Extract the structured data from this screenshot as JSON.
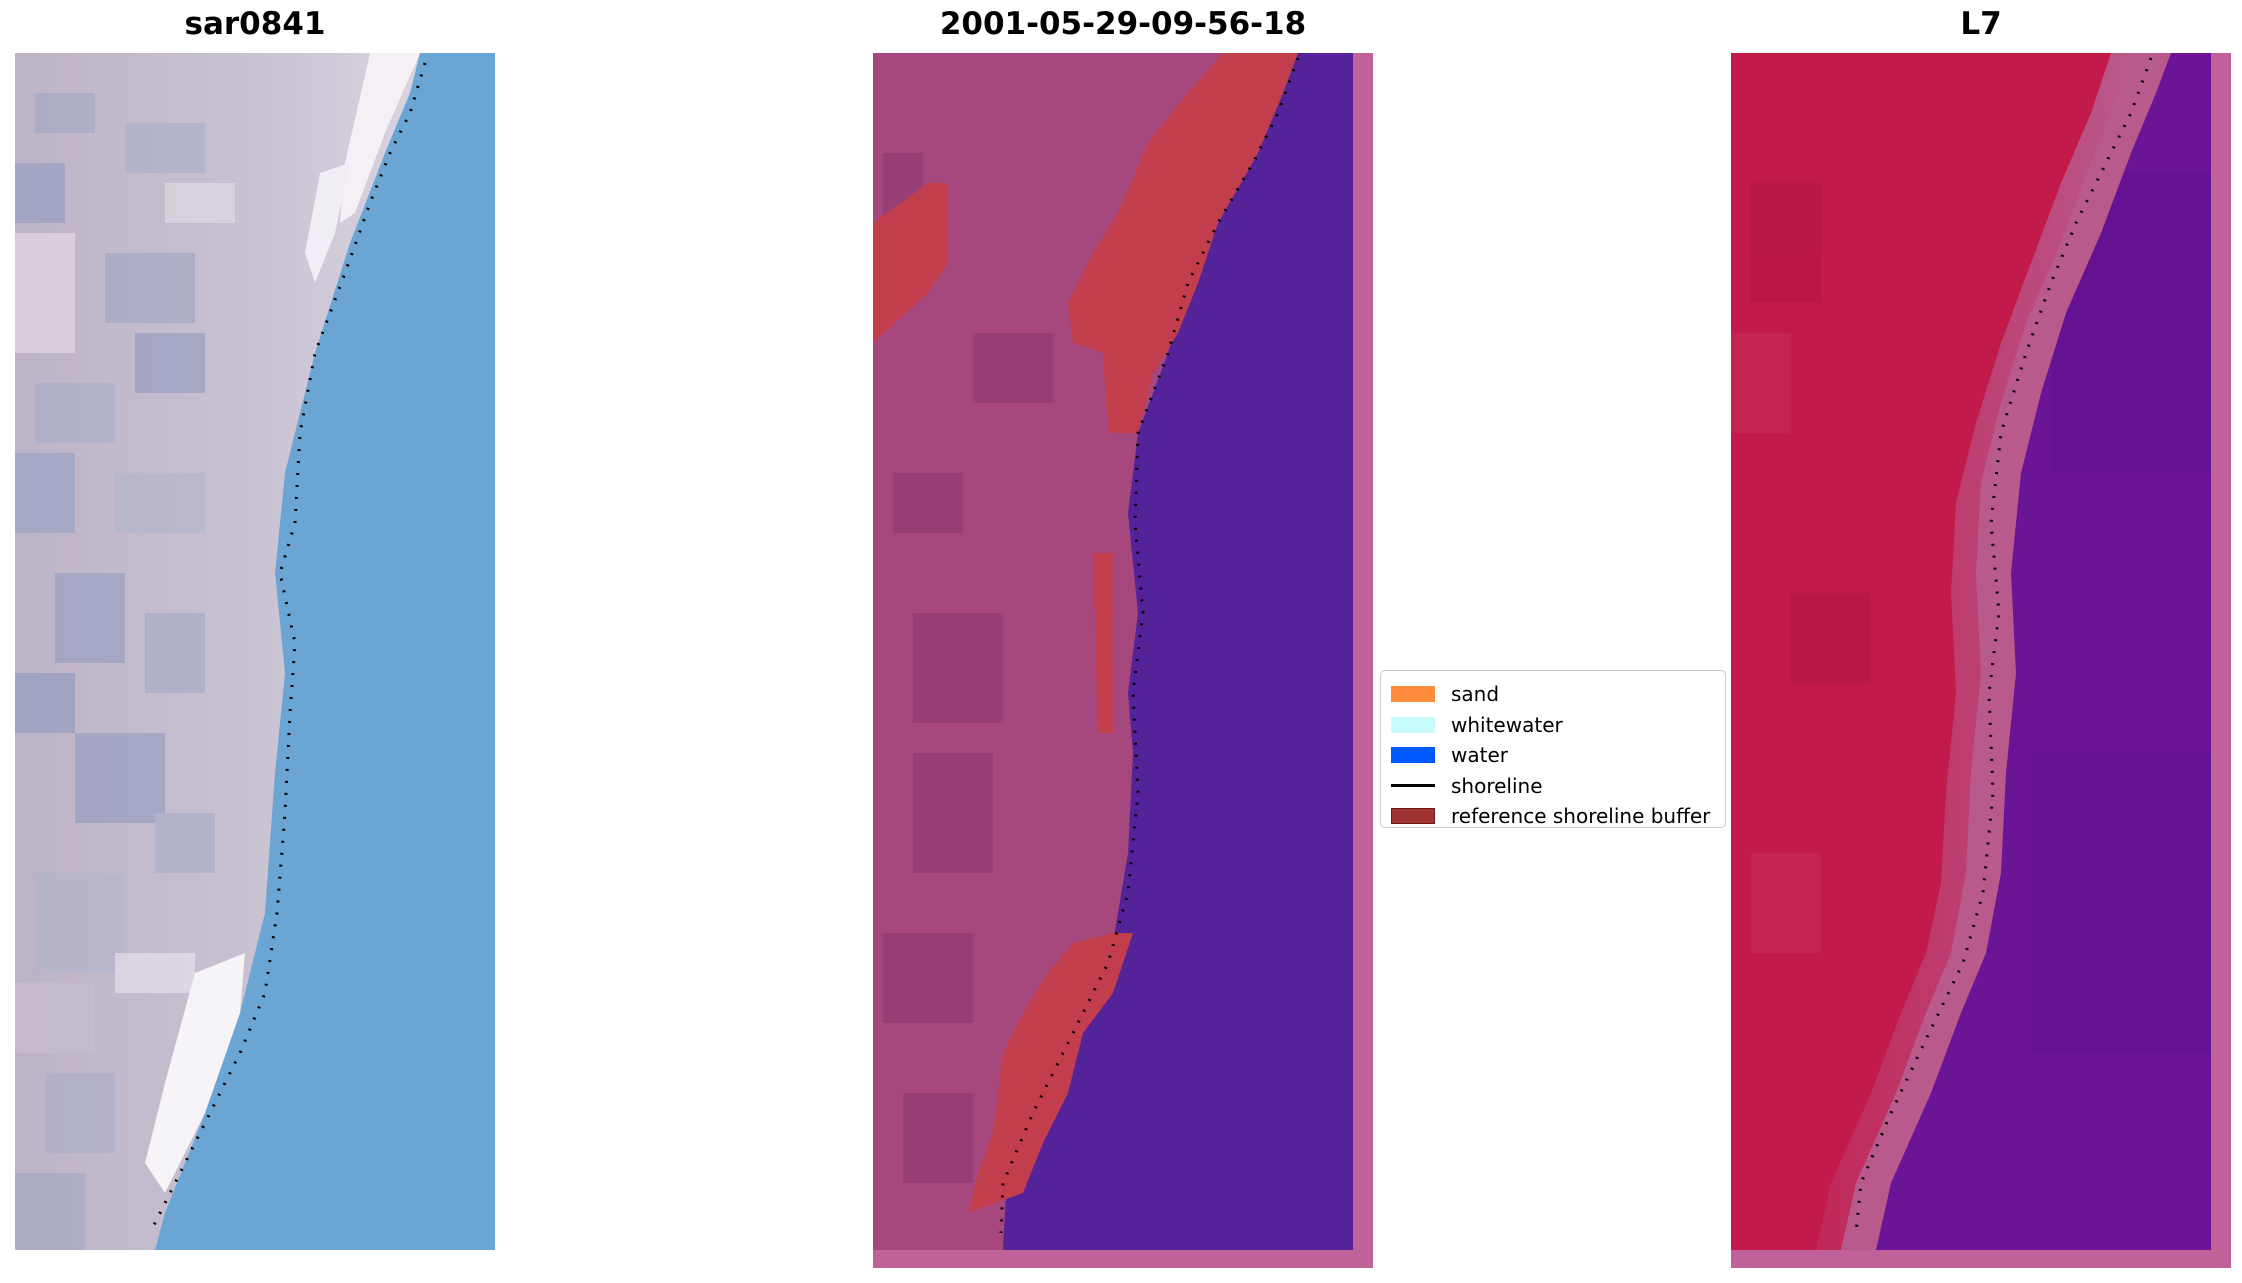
{
  "panels": [
    {
      "id": "rgb",
      "title": "sar0841"
    },
    {
      "id": "classified",
      "title": "2001-05-29-09-56-18"
    },
    {
      "id": "mndwi",
      "title": "L7"
    }
  ],
  "legend": {
    "items": [
      {
        "label": "sand",
        "color": "#ff8c3d"
      },
      {
        "label": "whitewater",
        "color": "#c8fcfc"
      },
      {
        "label": "water",
        "color": "#0059ff"
      },
      {
        "label": "shoreline",
        "color": "#000000"
      },
      {
        "label": "reference shoreline buffer",
        "color": "#a03333"
      }
    ]
  },
  "colors": {
    "rgb_water": "#6aa5d3",
    "rgb_land": "#c0bccb",
    "classified_water": "#542399",
    "classified_land": "#a6487e",
    "classified_buffer": "#c23e4c",
    "mndwi_water": "#6b1496",
    "mndwi_land": "#c21a4a",
    "frame_pink": "#c1619a"
  }
}
